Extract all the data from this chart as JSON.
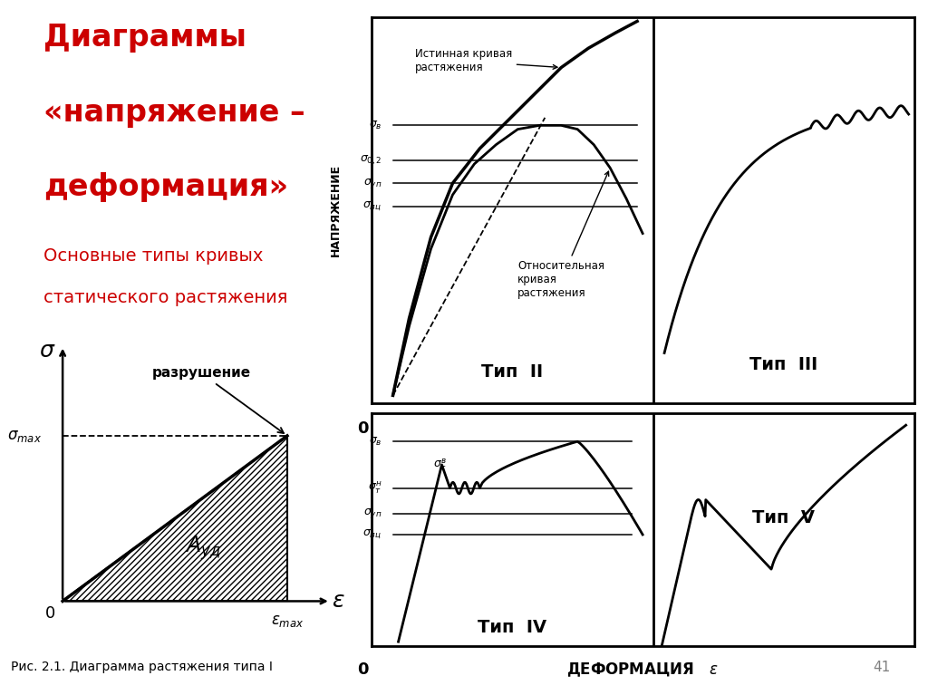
{
  "title_line1": "Диаграммы",
  "title_line2": "«напряжение –",
  "title_line3": "деформация»",
  "subtitle_line1": "Основные типы кривых",
  "subtitle_line2": "статического растяжения",
  "fig_caption": "Рис. 2.1. Диаграмма растяжения типа I",
  "page_number": "41",
  "bg_color": "#ffffff",
  "text_color": "#000000",
  "title_color": "#cc0000",
  "subtitle_color": "#cc0000"
}
